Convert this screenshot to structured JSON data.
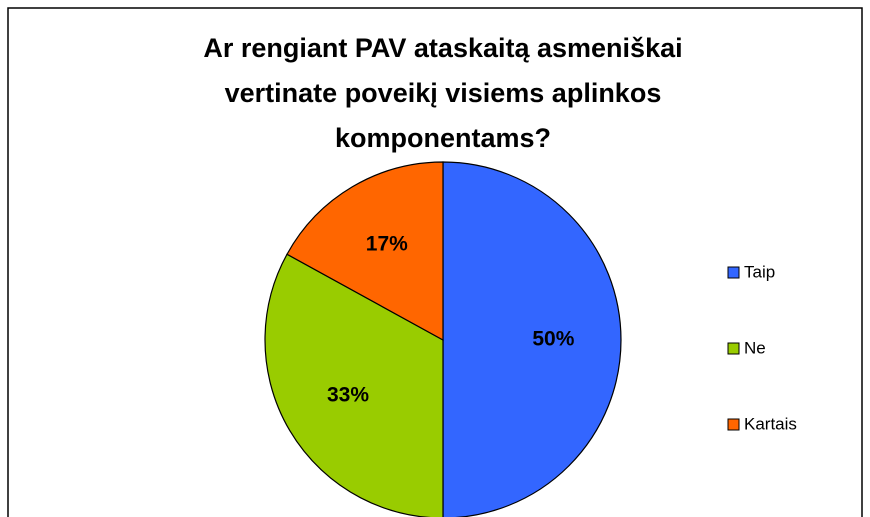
{
  "chart_data": {
    "type": "pie",
    "title": [
      "Ar rengiant PAV ataskaitą asmeniškai",
      "vertinate poveikį visiems aplinkos",
      "komponentams?"
    ],
    "categories": [
      "Taip",
      "Ne",
      "Kartais"
    ],
    "values": [
      50,
      33,
      17
    ],
    "value_labels": [
      "50%",
      "33%",
      "17%"
    ],
    "colors": [
      "#3366ff",
      "#99cc00",
      "#ff6600"
    ],
    "legend": "right"
  }
}
